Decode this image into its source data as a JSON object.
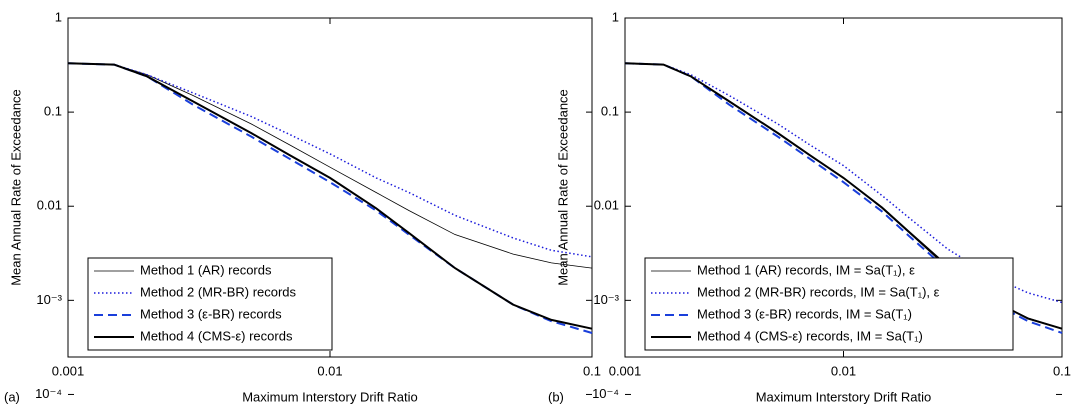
{
  "chart_data": [
    {
      "type": "line",
      "panel_label": "(a)",
      "xlabel": "Maximum Interstory Drift Ratio",
      "ylabel": "Mean Annual Rate of Exceedance",
      "xscale": "log",
      "yscale": "log",
      "xlim": [
        0.001,
        0.1
      ],
      "ylim": [
        0.00025,
        1
      ],
      "xticks": [
        0.001,
        0.01,
        0.1
      ],
      "yticks": [
        {
          "value": 0.0001,
          "label": "10⁻⁴"
        },
        {
          "value": 0.001,
          "label": "10⁻³"
        },
        0.01,
        0.1,
        1
      ],
      "legend": "lower left",
      "x": [
        0.001,
        0.0015,
        0.002,
        0.003,
        0.005,
        0.007,
        0.01,
        0.015,
        0.02,
        0.03,
        0.05,
        0.07,
        0.1
      ],
      "series": [
        {
          "name": "Method 1 (AR) records",
          "color": "#000000",
          "linestyle": "solid",
          "linewidth": 0.8,
          "values": [
            0.33,
            0.32,
            0.25,
            0.15,
            0.075,
            0.045,
            0.026,
            0.014,
            0.009,
            0.005,
            0.0031,
            0.0025,
            0.0022
          ]
        },
        {
          "name": "Method 2 (MR-BR) records",
          "color": "#1a1adb",
          "linestyle": "dotted",
          "linewidth": 1.5,
          "values": [
            0.33,
            0.32,
            0.25,
            0.16,
            0.09,
            0.058,
            0.036,
            0.02,
            0.014,
            0.008,
            0.0046,
            0.0034,
            0.0029
          ]
        },
        {
          "name": "Method 3 (ε-BR) records",
          "color": "#1a3fdb",
          "linestyle": "dashed",
          "linewidth": 2,
          "values": [
            0.33,
            0.32,
            0.24,
            0.12,
            0.055,
            0.032,
            0.018,
            0.009,
            0.005,
            0.0022,
            0.0009,
            0.0006,
            0.00045
          ]
        },
        {
          "name": "Method 4 (CMS-ε) records",
          "color": "#000000",
          "linestyle": "solid",
          "linewidth": 2,
          "values": [
            0.33,
            0.32,
            0.24,
            0.13,
            0.06,
            0.035,
            0.02,
            0.0095,
            0.0052,
            0.0022,
            0.0009,
            0.00062,
            0.0005
          ]
        }
      ]
    },
    {
      "type": "line",
      "panel_label": "(b)",
      "xlabel": "Maximum Interstory Drift Ratio",
      "ylabel": "Mean Annual Rate of Exceedance",
      "xscale": "log",
      "yscale": "log",
      "xlim": [
        0.001,
        0.1
      ],
      "ylim": [
        0.00025,
        1
      ],
      "xticks": [
        0.001,
        0.01,
        0.1
      ],
      "yticks": [
        {
          "value": 0.0001,
          "label": "10⁻⁴"
        },
        {
          "value": 0.001,
          "label": "10⁻³"
        },
        0.01,
        0.1,
        1
      ],
      "legend": "lower left",
      "x": [
        0.001,
        0.0015,
        0.002,
        0.003,
        0.005,
        0.007,
        0.01,
        0.015,
        0.02,
        0.03,
        0.05,
        0.07,
        0.1
      ],
      "series": [
        {
          "name": "Method 1 (AR) records, IM = Sa(T₁), ε",
          "color": "#000000",
          "linestyle": "solid",
          "linewidth": 0.8,
          "values": [
            0.33,
            0.32,
            0.24,
            0.13,
            0.06,
            0.035,
            0.02,
            0.0095,
            0.0052,
            0.0022,
            0.00095,
            0.00065,
            0.0005
          ]
        },
        {
          "name": "Method 2 (MR-BR) records, IM = Sa(T₁), ε",
          "color": "#1a1adb",
          "linestyle": "dotted",
          "linewidth": 1.5,
          "values": [
            0.33,
            0.32,
            0.25,
            0.15,
            0.075,
            0.045,
            0.027,
            0.013,
            0.0075,
            0.0035,
            0.0017,
            0.0012,
            0.00095
          ]
        },
        {
          "name": "Method 3 (ε-BR) records, IM = Sa(T₁)",
          "color": "#1a3fdb",
          "linestyle": "dashed",
          "linewidth": 2,
          "values": [
            0.33,
            0.32,
            0.24,
            0.12,
            0.055,
            0.032,
            0.018,
            0.0088,
            0.0048,
            0.0021,
            0.0009,
            0.0006,
            0.00045
          ]
        },
        {
          "name": "Method 4 (CMS-ε) records, IM = Sa(T₁)",
          "color": "#000000",
          "linestyle": "solid",
          "linewidth": 2,
          "values": [
            0.33,
            0.32,
            0.24,
            0.13,
            0.06,
            0.035,
            0.02,
            0.0097,
            0.0053,
            0.0023,
            0.00095,
            0.00064,
            0.0005
          ]
        }
      ]
    }
  ]
}
